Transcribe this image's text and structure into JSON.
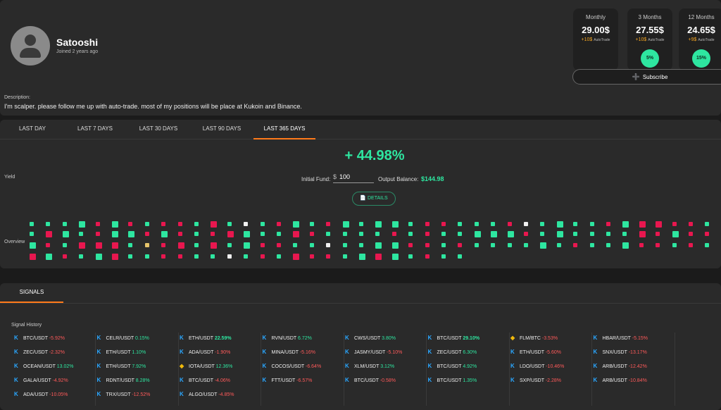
{
  "profile": {
    "name": "Satooshi",
    "joined": "Joined 2 years ago",
    "description_label": "Description:",
    "description": "I'm scalper. please follow me up with auto-trade. most of my positions will be place at Kukoin and Binance."
  },
  "plans": [
    {
      "name": "Monthly",
      "price": "29.00$",
      "auto_price": "+10$",
      "auto_label": "AutoTrade",
      "discount": ""
    },
    {
      "name": "3 Months",
      "price": "27.55$",
      "auto_price": "+10$",
      "auto_label": "AutoTrade",
      "discount": "5%"
    },
    {
      "name": "12 Months",
      "price": "24.65$",
      "auto_price": "+9$",
      "auto_label": "AutoTrade",
      "discount": "15%"
    }
  ],
  "subscribe_label": "Subscribe",
  "tabs": [
    "LAST DAY",
    "LAST 7 DAYS",
    "LAST 30 DAYS",
    "LAST 90 DAYS",
    "LAST 365 DAYS"
  ],
  "active_tab": "LAST 365 DAYS",
  "yield": {
    "label": "Yield",
    "percent": "+ 44.98%",
    "initial_fund_label": "Initial Fund:",
    "currency": "$",
    "initial_fund": "100",
    "output_balance_label": "Output Balance:",
    "output_balance": "$144.98",
    "details_label": "DETAILS"
  },
  "overview_label": "Overview",
  "colors": {
    "positive": "#2ee6a0",
    "negative": "#e8174f",
    "neutral": "#e6c46a",
    "flat": "#f0f0f0",
    "accent": "#ff7a1a"
  },
  "signals": {
    "tab": "SIGNALS",
    "history_label": "Signal History",
    "columns": [
      [
        {
          "ex": "kucoin",
          "pair": "BTC/USDT",
          "change": "-5.92%"
        },
        {
          "ex": "kucoin",
          "pair": "ZEC/USDT",
          "change": "-2.32%"
        },
        {
          "ex": "kucoin",
          "pair": "OCEAN/USDT",
          "change": "13.02%"
        },
        {
          "ex": "kucoin",
          "pair": "GALA/USDT",
          "change": "-4.92%"
        },
        {
          "ex": "kucoin",
          "pair": "ADA/USDT",
          "change": "-10.05%"
        }
      ],
      [
        {
          "ex": "kucoin",
          "pair": "CELR/USDT",
          "change": "0.15%"
        },
        {
          "ex": "kucoin",
          "pair": "ETH/USDT",
          "change": "1.10%"
        },
        {
          "ex": "kucoin",
          "pair": "ETH/USDT",
          "change": "7.92%"
        },
        {
          "ex": "kucoin",
          "pair": "RDNT/USDT",
          "change": "8.28%"
        },
        {
          "ex": "kucoin",
          "pair": "TRX/USDT",
          "change": "-12.52%"
        }
      ],
      [
        {
          "ex": "kucoin",
          "pair": "ETH/USDT",
          "change": "22.59%"
        },
        {
          "ex": "kucoin",
          "pair": "ADA/USDT",
          "change": "-1.90%"
        },
        {
          "ex": "binance",
          "pair": "IOTA/USDT",
          "change": "12.36%"
        },
        {
          "ex": "kucoin",
          "pair": "BTC/USDT",
          "change": "-4.06%"
        },
        {
          "ex": "kucoin",
          "pair": "ALGO/USDT",
          "change": "-4.85%"
        }
      ],
      [
        {
          "ex": "kucoin",
          "pair": "RVN/USDT",
          "change": "6.72%"
        },
        {
          "ex": "kucoin",
          "pair": "MINA/USDT",
          "change": "-5.16%"
        },
        {
          "ex": "kucoin",
          "pair": "COCOS/USDT",
          "change": "-6.64%"
        },
        {
          "ex": "kucoin",
          "pair": "FTT/USDT",
          "change": "-6.57%"
        }
      ],
      [
        {
          "ex": "kucoin",
          "pair": "CWS/USDT",
          "change": "3.80%"
        },
        {
          "ex": "kucoin",
          "pair": "JASMY/USDT",
          "change": "-5.10%"
        },
        {
          "ex": "kucoin",
          "pair": "XLM/USDT",
          "change": "3.12%"
        },
        {
          "ex": "kucoin",
          "pair": "BTC/USDT",
          "change": "-0.58%"
        }
      ],
      [
        {
          "ex": "kucoin",
          "pair": "BTC/USDT",
          "change": "29.10%"
        },
        {
          "ex": "kucoin",
          "pair": "ZEC/USDT",
          "change": "6.30%"
        },
        {
          "ex": "kucoin",
          "pair": "BTC/USDT",
          "change": "4.92%"
        },
        {
          "ex": "kucoin",
          "pair": "BTC/USDT",
          "change": "1.35%"
        }
      ],
      [
        {
          "ex": "binance",
          "pair": "FLM/BTC",
          "change": "-3.53%"
        },
        {
          "ex": "kucoin",
          "pair": "ETH/USDT",
          "change": "-5.60%"
        },
        {
          "ex": "kucoin",
          "pair": "LDO/USDT",
          "change": "-10.46%"
        },
        {
          "ex": "kucoin",
          "pair": "SXP/USDT",
          "change": "-2.28%"
        }
      ],
      [
        {
          "ex": "kucoin",
          "pair": "HBAR/USDT",
          "change": "-5.15%"
        },
        {
          "ex": "kucoin",
          "pair": "SNX/USDT",
          "change": "-13.17%"
        },
        {
          "ex": "kucoin",
          "pair": "ARB/USDT",
          "change": "-12.42%"
        },
        {
          "ex": "kucoin",
          "pair": "ARB/USDT",
          "change": "-10.84%"
        }
      ]
    ]
  }
}
